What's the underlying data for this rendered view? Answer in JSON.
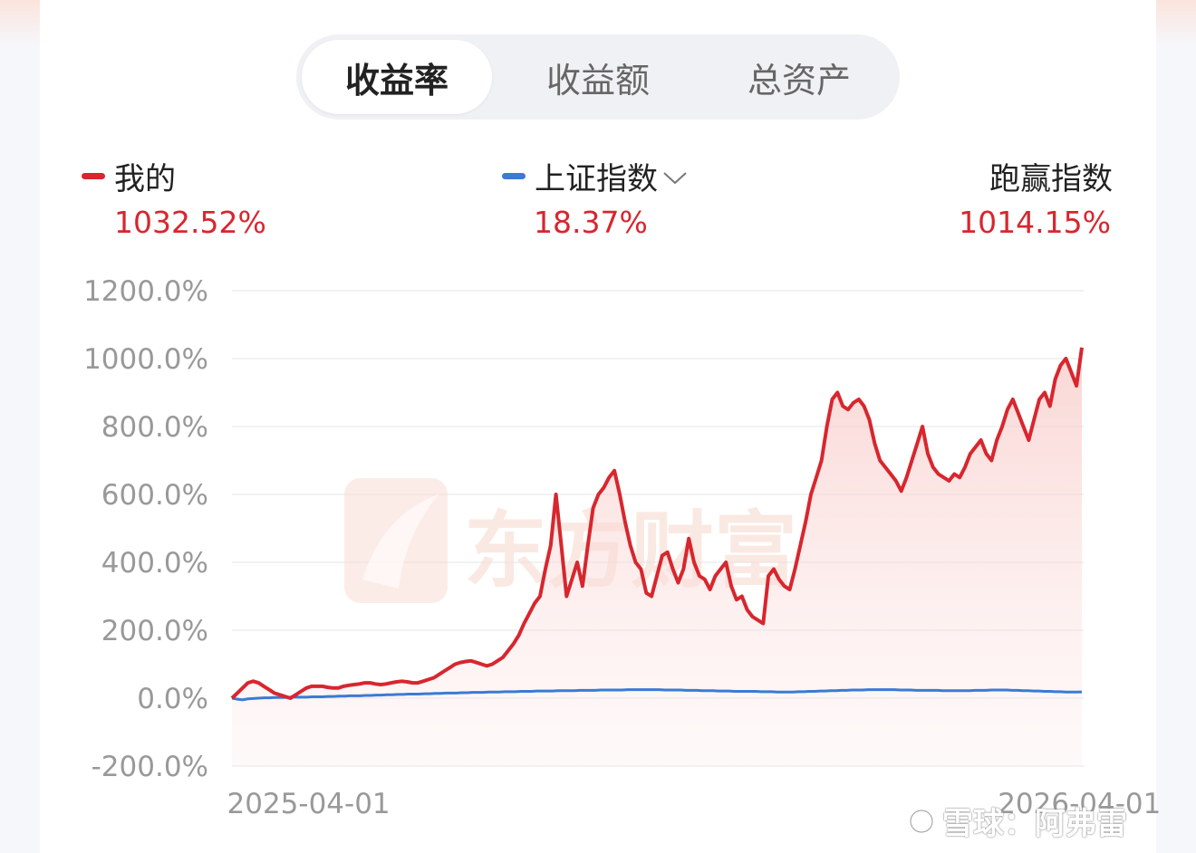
{
  "tabs": [
    {
      "label": "收益率",
      "active": true
    },
    {
      "label": "收益额",
      "active": false
    },
    {
      "label": "总资产",
      "active": false
    }
  ],
  "legend": {
    "mine": {
      "name": "我的",
      "value": "1032.52%",
      "color": "#d8262e"
    },
    "index": {
      "name": "上证指数",
      "value": "18.37%",
      "color": "#3a7bd5"
    },
    "excess": {
      "name": "跑赢指数",
      "value": "1014.15%"
    }
  },
  "watermark": "东方财富",
  "credit": "雪球：阿弗雷",
  "chart_data": {
    "type": "line",
    "ylim": [
      -200,
      1200
    ],
    "yticks": [
      "1200.0%",
      "1000.0%",
      "800.0%",
      "600.0%",
      "400.0%",
      "200.0%",
      "0.0%",
      "-200.0%"
    ],
    "ytick_values": [
      1200,
      1000,
      800,
      600,
      400,
      200,
      0,
      -200
    ],
    "xticks": [
      "2025-04-01",
      "2026-04-01"
    ],
    "xtick_positions": [
      0.09,
      0.995
    ],
    "series": [
      {
        "name": "我的",
        "color": "#d8262e",
        "values": [
          0,
          15,
          30,
          45,
          50,
          45,
          35,
          25,
          15,
          10,
          5,
          0,
          10,
          20,
          30,
          35,
          35,
          35,
          32,
          30,
          30,
          35,
          38,
          40,
          42,
          45,
          45,
          42,
          40,
          42,
          45,
          48,
          50,
          48,
          45,
          45,
          50,
          55,
          60,
          70,
          80,
          90,
          100,
          105,
          108,
          110,
          105,
          100,
          95,
          100,
          110,
          120,
          140,
          160,
          185,
          220,
          250,
          280,
          300,
          380,
          450,
          600,
          450,
          300,
          350,
          400,
          330,
          450,
          560,
          600,
          620,
          650,
          670,
          600,
          520,
          450,
          400,
          380,
          310,
          300,
          360,
          420,
          430,
          380,
          340,
          380,
          470,
          400,
          360,
          350,
          320,
          360,
          380,
          400,
          330,
          290,
          300,
          260,
          240,
          230,
          220,
          360,
          380,
          350,
          330,
          320,
          380,
          450,
          520,
          600,
          650,
          700,
          800,
          880,
          900,
          860,
          850,
          870,
          880,
          860,
          820,
          750,
          700,
          680,
          660,
          640,
          610,
          650,
          700,
          750,
          800,
          720,
          680,
          660,
          650,
          640,
          660,
          650,
          680,
          720,
          740,
          760,
          720,
          700,
          760,
          800,
          850,
          880,
          840,
          800,
          760,
          820,
          880,
          900,
          860,
          940,
          980,
          1000,
          960,
          920,
          1032.52
        ]
      },
      {
        "name": "上证指数",
        "color": "#3a7bd5",
        "values": [
          0,
          -3,
          -5,
          -2,
          -1,
          0,
          1,
          1,
          2,
          2,
          2,
          3,
          3,
          3,
          3,
          4,
          4,
          4,
          5,
          5,
          6,
          6,
          7,
          7,
          7,
          8,
          8,
          9,
          9,
          10,
          10,
          11,
          11,
          12,
          12,
          12,
          13,
          13,
          14,
          14,
          15,
          15,
          15,
          16,
          16,
          17,
          17,
          17,
          18,
          18,
          18,
          19,
          19,
          19,
          20,
          20,
          20,
          21,
          21,
          21,
          21,
          22,
          22,
          22,
          22,
          23,
          23,
          23,
          23,
          24,
          24,
          24,
          24,
          24,
          25,
          25,
          25,
          25,
          25,
          25,
          25,
          24,
          24,
          24,
          24,
          23,
          23,
          23,
          22,
          22,
          22,
          21,
          21,
          21,
          20,
          20,
          20,
          20,
          20,
          19,
          19,
          19,
          18,
          18,
          18,
          18,
          19,
          19,
          20,
          20,
          21,
          21,
          22,
          22,
          23,
          23,
          24,
          24,
          24,
          25,
          25,
          25,
          25,
          25,
          25,
          24,
          24,
          24,
          23,
          23,
          23,
          23,
          23,
          22,
          22,
          22,
          22,
          22,
          22,
          23,
          23,
          23,
          24,
          24,
          24,
          24,
          23,
          23,
          22,
          22,
          21,
          21,
          20,
          20,
          19,
          19,
          18,
          18,
          18,
          18.37
        ]
      }
    ]
  }
}
